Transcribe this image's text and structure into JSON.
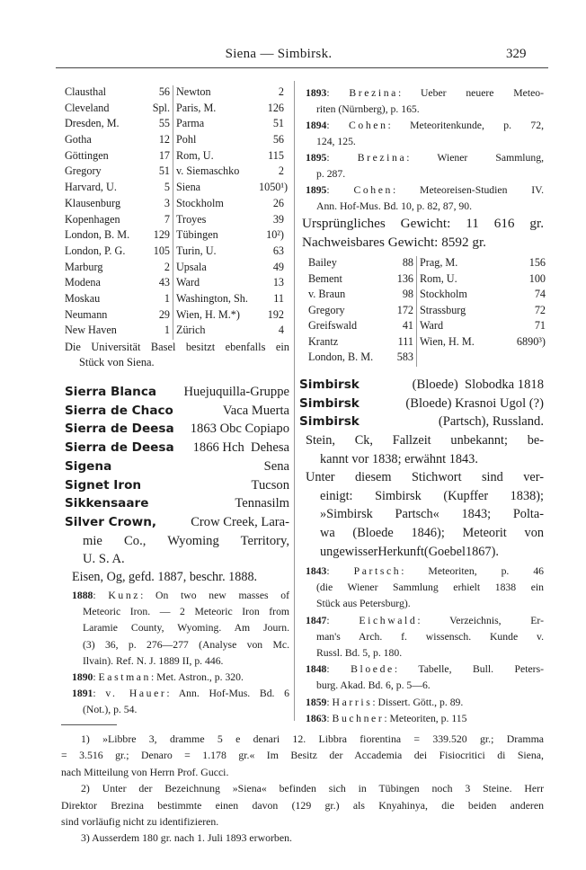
{
  "header": {
    "title": "Siena — Simbirsk.",
    "page_number": "329"
  },
  "left": {
    "collections_table": [
      [
        "Clausthal",
        "56",
        "Newton",
        "2"
      ],
      [
        "Cleveland",
        "Spl.",
        "Paris, M.",
        "126"
      ],
      [
        "Dresden, M.",
        "55",
        "Parma",
        "51"
      ],
      [
        "Gotha",
        "12",
        "Pohl",
        "56"
      ],
      [
        "Göttingen",
        "17",
        "Rom, U.",
        "115"
      ],
      [
        "Gregory",
        "51",
        "v. Siemaschko",
        "2"
      ],
      [
        "Harvard, U.",
        "5",
        "Siena",
        "1050¹)"
      ],
      [
        "Klausenburg",
        "3",
        "Stockholm",
        "26"
      ],
      [
        "Kopenhagen",
        "7",
        "Troyes",
        "39"
      ],
      [
        "London, B. M.",
        "129",
        "Tübingen",
        "10²)"
      ],
      [
        "London, P. G.",
        "105",
        "Turin, U.",
        "63"
      ],
      [
        "Marburg",
        "2",
        "Upsala",
        "49"
      ],
      [
        "Modena",
        "43",
        "Ward",
        "13"
      ],
      [
        "Moskau",
        "1",
        "Washington, Sh.",
        "11"
      ],
      [
        "Neumann",
        "29",
        "Wien, H. M.*)",
        "192"
      ],
      [
        "New Haven",
        "1",
        "Zürich",
        "4"
      ]
    ],
    "basel_note": [
      "Die Universität Basel besitzt ebenfalls ein",
      "Stück von Siena."
    ],
    "headwords": [
      {
        "bold": "Sierra Blanca",
        "rest": "Huejuquilla-Gruppe"
      },
      {
        "bold": "Sierra de Chaco",
        "rest": "Vaca Muerta"
      },
      {
        "bold": "Sierra de Deesa",
        "rest": "1863 Obc Copiapo"
      },
      {
        "bold": "Sierra de Deesa",
        "rest": "1866 Hch  Dehesa"
      },
      {
        "bold": "Sigena",
        "rest": "Sena"
      },
      {
        "bold": "Signet Iron",
        "rest": "Tucson"
      },
      {
        "bold": "Sikkensaare",
        "rest": "Tennasilm"
      },
      {
        "bold": "Silver Crown,",
        "rest": "Crow Creek, Lara-"
      }
    ],
    "silver_crown_cont": [
      "mie Co., Wyoming Territory,",
      "U. S. A."
    ],
    "eisen_line": "Eisen, Og, gefd. 1887, beschr. 1888.",
    "refs": [
      {
        "year": "1888",
        "author": "Kunz",
        "lines": [
          "On two new masses of",
          "Meteoric Iron. — 2 Meteoric Iron from",
          "Laramie County, Wyoming. Am Journ.",
          "(3) 36, p. 276—277 (Analyse von Mc.",
          "Ilvain). Ref. N. J. 1889 II, p. 446."
        ]
      },
      {
        "year": "1890",
        "author": "Eastman",
        "lines": [
          "Met. Astron., p. 320."
        ]
      },
      {
        "year": "1891",
        "author": "v. Hauer",
        "lines": [
          "Ann. Hof-Mus. Bd. 6",
          "(Not.), p. 54."
        ]
      }
    ]
  },
  "right": {
    "refs_top": [
      {
        "year": "1893",
        "author": "Brezina",
        "lines": [
          "Ueber neuere Meteo-",
          "riten (Nürnberg), p. 165."
        ]
      },
      {
        "year": "1894",
        "author": "Cohen",
        "lines": [
          "Meteoritenkunde, p. 72,",
          "124, 125."
        ]
      },
      {
        "year": "1895",
        "author": "Brezina",
        "lines": [
          "Wiener Sammlung,",
          "p. 287."
        ]
      },
      {
        "year": "1895",
        "author": "Cohen",
        "lines": [
          "Meteoreisen-Studien IV.",
          "Ann. Hof-Mus. Bd. 10, p. 82, 87, 90."
        ]
      }
    ],
    "weights": [
      "Ursprüngliches Gewicht: 11 616 gr.",
      "Nachweisbares Gewicht: 8592 gr."
    ],
    "collections_table": [
      [
        "Bailey",
        "88",
        "Prag, M.",
        "156"
      ],
      [
        "Bement",
        "136",
        "Rom, U.",
        "100"
      ],
      [
        "v. Braun",
        "98",
        "Stockholm",
        "74"
      ],
      [
        "Gregory",
        "172",
        "Strassburg",
        "72"
      ],
      [
        "Greifswald",
        "41",
        "Ward",
        "71"
      ],
      [
        "Krantz",
        "111",
        "Wien, H. M.",
        "6890³)"
      ],
      [
        "London, B. M.",
        "583",
        "",
        ""
      ]
    ],
    "headwords": [
      {
        "bold": "Simbirsk",
        "rest": "(Bloede)  Slobodka 1818"
      },
      {
        "bold": "Simbirsk",
        "rest": "(Bloede) Krasnoi Ugol (?)"
      },
      {
        "bold": "Simbirsk",
        "rest": "(Partsch), Russland."
      }
    ],
    "description": [
      [
        "Stein, Ck, Fallzeit unbekannt; be-",
        "kannt vor 1838; erwähnt 1843."
      ],
      [
        "Unter diesem Stichwort sind ver-",
        "einigt: Simbirsk (Kupffer 1838);",
        "»Simbirsk Partsch« 1843; Polta-",
        "wa (Bloede 1846); Meteorit von",
        "ungewisserHerkunft(Goebel1867)."
      ]
    ],
    "refs": [
      {
        "year": "1843",
        "author": "Partsch",
        "lines": [
          "Meteoriten, p. 46",
          "(die Wiener Sammlung erhielt 1838 ein",
          "Stück aus Petersburg)."
        ]
      },
      {
        "year": "1847",
        "author": "Eichwald",
        "lines": [
          "Verzeichnis, Er-",
          "man's Arch. f. wissensch. Kunde v.",
          "Russl. Bd. 5, p. 180."
        ]
      },
      {
        "year": "1848",
        "author": "Bloede",
        "lines": [
          "Tabelle, Bull. Peters-",
          "burg. Akad. Bd. 6, p. 5—6."
        ]
      },
      {
        "year": "1859",
        "author": "Harris",
        "lines": [
          "Dissert. Gött., p. 89."
        ]
      },
      {
        "year": "1863",
        "author": "Buchner",
        "lines": [
          "Meteoriten, p. 115"
        ]
      }
    ]
  },
  "footnotes": [
    [
      "1) »Libbre 3, dramme 5 e denari 12.  Libbra fiorentina = 339.520 gr.; Dramma",
      "= 3.516 gr.;  Denaro = 1.178 gr.«  Im Besitz der Accademia dei Fisiocritici di Siena,",
      "nach Mitteilung von Herrn Prof. Gucci."
    ],
    [
      "2) Unter der Bezeichnung »Siena« befinden sich in Tübingen noch 3 Steine.  Herr",
      "Direktor Brezina bestimmte einen davon (129 gr.) als Knyahinya, die beiden anderen",
      "sind vorläufig nicht zu identifizieren."
    ],
    [
      "3) Ausserdem 180 gr. nach 1. Juli 1893 erworben."
    ]
  ]
}
